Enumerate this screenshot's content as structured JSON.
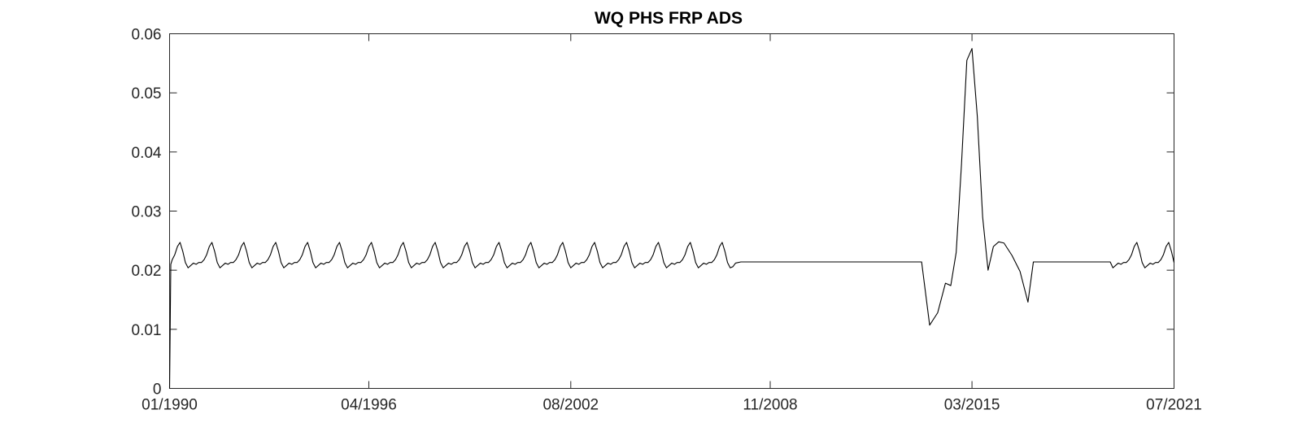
{
  "chart_data": {
    "type": "line",
    "title": "WQ PHS FRP ADS",
    "xlabel": "",
    "ylabel": "",
    "x_axis": {
      "kind": "date",
      "range": [
        "1990-01-01",
        "2021-07-01"
      ],
      "ticks": [
        {
          "label": "01/1990",
          "date": "1990-01-01"
        },
        {
          "label": "04/1996",
          "date": "1996-04-01"
        },
        {
          "label": "08/2002",
          "date": "2002-08-01"
        },
        {
          "label": "11/2008",
          "date": "2008-11-01"
        },
        {
          "label": "03/2015",
          "date": "2015-03-01"
        },
        {
          "label": "07/2021",
          "date": "2021-07-01"
        }
      ]
    },
    "y_axis": {
      "range": [
        0,
        0.06
      ],
      "ticks": [
        {
          "label": "0",
          "value": 0
        },
        {
          "label": "0.01",
          "value": 0.01
        },
        {
          "label": "0.02",
          "value": 0.02
        },
        {
          "label": "0.03",
          "value": 0.03
        },
        {
          "label": "0.04",
          "value": 0.04
        },
        {
          "label": "0.05",
          "value": 0.05
        },
        {
          "label": "0.06",
          "value": 0.06
        }
      ]
    },
    "grid": false,
    "legend": "none",
    "line_color": "#000000",
    "series": [
      {
        "pattern": {
          "years": [
            1990,
            2007
          ],
          "monthly_values": [
            0.0213,
            0.0218,
            0.0226,
            0.024,
            0.0247,
            0.0232,
            0.0213,
            0.0204,
            0.0208,
            0.0212,
            0.021,
            0.0213
          ]
        },
        "points": [
          [
            "1990-01-01",
            0.0
          ],
          [
            "1990-01-15",
            0.021
          ],
          [
            "2007-09-01",
            0.0206
          ],
          [
            "2007-10-01",
            0.0212
          ],
          [
            "2007-12-01",
            0.0214
          ],
          [
            "2013-08-01",
            0.0214
          ],
          [
            "2013-11-01",
            0.0107
          ],
          [
            "2014-02-01",
            0.0128
          ],
          [
            "2014-05-01",
            0.0178
          ],
          [
            "2014-07-01",
            0.0174
          ],
          [
            "2014-09-01",
            0.023
          ],
          [
            "2014-11-01",
            0.038
          ],
          [
            "2015-01-01",
            0.0555
          ],
          [
            "2015-03-01",
            0.0575
          ],
          [
            "2015-05-01",
            0.046
          ],
          [
            "2015-07-01",
            0.029
          ],
          [
            "2015-09-01",
            0.02
          ],
          [
            "2015-11-01",
            0.024
          ],
          [
            "2016-01-01",
            0.0248
          ],
          [
            "2016-03-01",
            0.0246
          ],
          [
            "2016-06-01",
            0.0225
          ],
          [
            "2016-09-01",
            0.0198
          ],
          [
            "2016-12-01",
            0.0146
          ],
          [
            "2017-02-01",
            0.0214
          ],
          [
            "2019-07-01",
            0.0214
          ]
        ],
        "pattern_tail": {
          "years": [
            2019,
            2021
          ],
          "start": "2019-08-01",
          "end": "2021-07-01",
          "monthly_values": [
            0.0213,
            0.0218,
            0.0226,
            0.024,
            0.0247,
            0.0232,
            0.0213,
            0.0204,
            0.0208,
            0.0212,
            0.021,
            0.0213
          ]
        }
      }
    ]
  }
}
